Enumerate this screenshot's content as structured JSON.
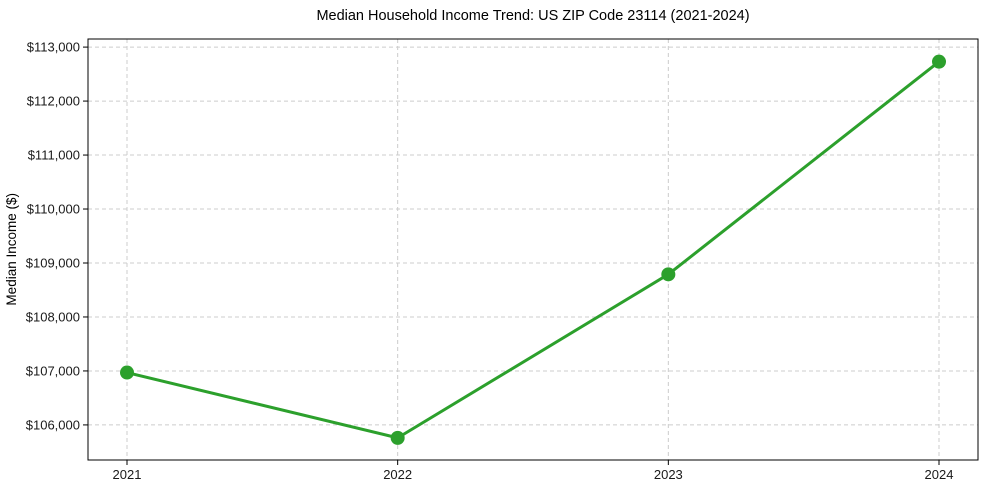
{
  "chart_data": {
    "type": "line",
    "title": "Median Household Income Trend: US ZIP Code 23114 (2021-2024)",
    "xlabel": "",
    "ylabel": "Median Income ($)",
    "x": [
      2021,
      2022,
      2023,
      2024
    ],
    "x_tick_labels": [
      "2021",
      "2022",
      "2023",
      "2024"
    ],
    "values": [
      106970,
      105760,
      108790,
      112730
    ],
    "y_ticks": [
      106000,
      107000,
      108000,
      109000,
      110000,
      111000,
      112000,
      113000
    ],
    "y_tick_labels": [
      "$106,000",
      "$107,000",
      "$108,000",
      "$109,000",
      "$110,000",
      "$111,000",
      "$112,000",
      "$113,000"
    ],
    "ylim": [
      105350,
      113150
    ],
    "line_color": "#2ca02c",
    "marker": "circle",
    "marker_color": "#2ca02c",
    "grid": "dashed",
    "grid_color": "#cccccc",
    "spine_color": "#000000",
    "background": "#ffffff",
    "legend": "none"
  }
}
